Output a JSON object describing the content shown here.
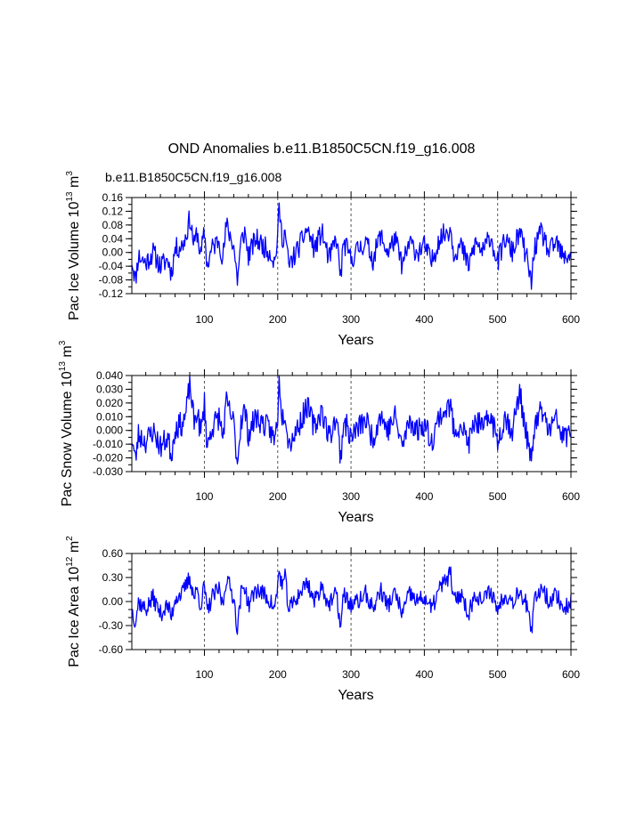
{
  "title": "OND Anomalies b.e11.B1850C5CN.f19_g16.008",
  "case_label": "b.e11.B1850C5CN.f19_g16.008",
  "colors": {
    "series": "#0000ff",
    "text": "#000000",
    "grid": "#555555"
  },
  "chart_data": [
    {
      "type": "line",
      "ylabel_pre": "Pac Ice Volume 10",
      "ylabel_exp": "13",
      "ylabel_unit": " m",
      "ylabel_unit_exp": "3",
      "xlabel": "Years",
      "xlim": [
        1,
        600
      ],
      "xticks": [
        100,
        200,
        300,
        400,
        500,
        600
      ],
      "ylim": [
        -0.12,
        0.16
      ],
      "yticks": [
        "0.16",
        "0.12",
        "0.08",
        "0.04",
        "0.00",
        "-0.04",
        "-0.08",
        "-0.12"
      ],
      "ytick_values": [
        0.16,
        0.12,
        0.08,
        0.04,
        0.0,
        -0.04,
        -0.08,
        -0.12
      ],
      "yminor": 0.02,
      "series_name": "b.e11.B1850C5CN.f19_g16.008",
      "anchors": [
        [
          1,
          -0.02
        ],
        [
          6,
          -0.08
        ],
        [
          10,
          -0.01
        ],
        [
          20,
          -0.03
        ],
        [
          30,
          0.0
        ],
        [
          40,
          -0.04
        ],
        [
          50,
          -0.02
        ],
        [
          55,
          -0.06
        ],
        [
          60,
          0.01
        ],
        [
          70,
          0.02
        ],
        [
          75,
          0.05
        ],
        [
          80,
          0.1
        ],
        [
          86,
          0.02
        ],
        [
          90,
          0.06
        ],
        [
          95,
          -0.01
        ],
        [
          100,
          0.06
        ],
        [
          104,
          -0.04
        ],
        [
          110,
          0.01
        ],
        [
          120,
          0.04
        ],
        [
          125,
          -0.02
        ],
        [
          130,
          0.08
        ],
        [
          140,
          0.02
        ],
        [
          145,
          -0.08
        ],
        [
          150,
          0.03
        ],
        [
          155,
          0.06
        ],
        [
          160,
          -0.01
        ],
        [
          170,
          0.04
        ],
        [
          180,
          0.02
        ],
        [
          190,
          0.0
        ],
        [
          196,
          -0.03
        ],
        [
          200,
          0.05
        ],
        [
          202,
          0.13
        ],
        [
          206,
          0.04
        ],
        [
          210,
          0.06
        ],
        [
          215,
          -0.04
        ],
        [
          230,
          0.02
        ],
        [
          240,
          0.07
        ],
        [
          250,
          0.01
        ],
        [
          260,
          0.06
        ],
        [
          270,
          -0.02
        ],
        [
          280,
          0.04
        ],
        [
          286,
          -0.07
        ],
        [
          290,
          0.03
        ],
        [
          300,
          -0.02
        ],
        [
          310,
          0.01
        ],
        [
          320,
          0.03
        ],
        [
          330,
          -0.02
        ],
        [
          340,
          0.05
        ],
        [
          350,
          0.0
        ],
        [
          360,
          0.04
        ],
        [
          370,
          -0.04
        ],
        [
          380,
          0.03
        ],
        [
          390,
          0.0
        ],
        [
          400,
          0.02
        ],
        [
          410,
          -0.03
        ],
        [
          420,
          0.04
        ],
        [
          436,
          0.07
        ],
        [
          440,
          0.0
        ],
        [
          450,
          0.02
        ],
        [
          460,
          -0.04
        ],
        [
          470,
          0.03
        ],
        [
          480,
          0.0
        ],
        [
          490,
          0.05
        ],
        [
          500,
          -0.03
        ],
        [
          510,
          0.04
        ],
        [
          520,
          0.0
        ],
        [
          530,
          0.06
        ],
        [
          540,
          -0.02
        ],
        [
          546,
          -0.09
        ],
        [
          550,
          0.01
        ],
        [
          560,
          0.06
        ],
        [
          570,
          0.0
        ],
        [
          580,
          0.03
        ],
        [
          590,
          -0.02
        ],
        [
          600,
          0.0
        ]
      ],
      "noise": 0.032,
      "seed": 11
    },
    {
      "type": "line",
      "ylabel_pre": "Pac Snow Volume 10",
      "ylabel_exp": "13",
      "ylabel_unit": " m",
      "ylabel_unit_exp": "3",
      "xlabel": "Years",
      "xlim": [
        1,
        600
      ],
      "xticks": [
        100,
        200,
        300,
        400,
        500,
        600
      ],
      "ylim": [
        -0.03,
        0.04
      ],
      "yticks": [
        "0.040",
        "0.030",
        "0.020",
        "0.010",
        "0.000",
        "-0.010",
        "-0.020",
        "-0.030"
      ],
      "ytick_values": [
        0.04,
        0.03,
        0.02,
        0.01,
        0.0,
        -0.01,
        -0.02,
        -0.03
      ],
      "yminor": 0.005,
      "series_name": "b.e11.B1850C5CN.f19_g16.008",
      "anchors": [
        [
          1,
          -0.005
        ],
        [
          6,
          -0.022
        ],
        [
          10,
          -0.003
        ],
        [
          20,
          -0.008
        ],
        [
          30,
          0.0
        ],
        [
          40,
          -0.012
        ],
        [
          50,
          -0.005
        ],
        [
          55,
          -0.018
        ],
        [
          60,
          0.002
        ],
        [
          70,
          0.005
        ],
        [
          75,
          0.012
        ],
        [
          80,
          0.035
        ],
        [
          86,
          0.005
        ],
        [
          90,
          0.015
        ],
        [
          95,
          -0.003
        ],
        [
          100,
          0.02
        ],
        [
          104,
          -0.012
        ],
        [
          110,
          0.002
        ],
        [
          120,
          0.01
        ],
        [
          125,
          -0.005
        ],
        [
          130,
          0.02
        ],
        [
          140,
          0.005
        ],
        [
          145,
          -0.024
        ],
        [
          150,
          0.008
        ],
        [
          155,
          0.015
        ],
        [
          160,
          -0.003
        ],
        [
          170,
          0.01
        ],
        [
          180,
          0.005
        ],
        [
          190,
          0.0
        ],
        [
          196,
          -0.008
        ],
        [
          200,
          0.012
        ],
        [
          202,
          0.04
        ],
        [
          206,
          0.01
        ],
        [
          210,
          0.015
        ],
        [
          215,
          -0.01
        ],
        [
          230,
          0.005
        ],
        [
          240,
          0.018
        ],
        [
          250,
          0.002
        ],
        [
          260,
          0.015
        ],
        [
          270,
          -0.005
        ],
        [
          280,
          0.01
        ],
        [
          286,
          -0.02
        ],
        [
          290,
          0.008
        ],
        [
          300,
          -0.005
        ],
        [
          310,
          0.002
        ],
        [
          320,
          0.008
        ],
        [
          330,
          -0.006
        ],
        [
          340,
          0.012
        ],
        [
          350,
          0.0
        ],
        [
          360,
          0.01
        ],
        [
          370,
          -0.012
        ],
        [
          380,
          0.008
        ],
        [
          390,
          0.0
        ],
        [
          400,
          0.005
        ],
        [
          410,
          -0.008
        ],
        [
          420,
          0.01
        ],
        [
          436,
          0.018
        ],
        [
          440,
          0.0
        ],
        [
          450,
          0.005
        ],
        [
          460,
          -0.01
        ],
        [
          470,
          0.008
        ],
        [
          480,
          0.0
        ],
        [
          490,
          0.012
        ],
        [
          500,
          -0.008
        ],
        [
          510,
          0.01
        ],
        [
          520,
          0.0
        ],
        [
          530,
          0.028
        ],
        [
          540,
          -0.005
        ],
        [
          546,
          -0.025
        ],
        [
          550,
          0.002
        ],
        [
          560,
          0.015
        ],
        [
          570,
          0.0
        ],
        [
          580,
          0.008
        ],
        [
          590,
          -0.006
        ],
        [
          600,
          0.0
        ]
      ],
      "noise": 0.009,
      "seed": 23
    },
    {
      "type": "line",
      "ylabel_pre": "Pac Ice Area 10",
      "ylabel_exp": "12",
      "ylabel_unit": " m",
      "ylabel_unit_exp": "2",
      "xlabel": "Years",
      "xlim": [
        1,
        600
      ],
      "xticks": [
        100,
        200,
        300,
        400,
        500,
        600
      ],
      "ylim": [
        -0.6,
        0.6
      ],
      "yticks": [
        "0.60",
        "0.30",
        "0.00",
        "-0.30",
        "-0.60"
      ],
      "ytick_values": [
        0.6,
        0.3,
        0.0,
        -0.3,
        -0.6
      ],
      "yminor": 0.1,
      "series_name": "b.e11.B1850C5CN.f19_g16.008",
      "anchors": [
        [
          1,
          -0.1
        ],
        [
          6,
          -0.25
        ],
        [
          10,
          0.0
        ],
        [
          20,
          -0.1
        ],
        [
          30,
          0.05
        ],
        [
          40,
          -0.15
        ],
        [
          50,
          -0.05
        ],
        [
          55,
          -0.2
        ],
        [
          60,
          0.05
        ],
        [
          70,
          0.1
        ],
        [
          75,
          0.2
        ],
        [
          80,
          0.3
        ],
        [
          86,
          0.05
        ],
        [
          90,
          0.15
        ],
        [
          95,
          -0.05
        ],
        [
          100,
          0.2
        ],
        [
          104,
          -0.15
        ],
        [
          110,
          0.05
        ],
        [
          120,
          0.15
        ],
        [
          125,
          -0.05
        ],
        [
          130,
          0.3
        ],
        [
          140,
          0.05
        ],
        [
          145,
          -0.35
        ],
        [
          150,
          0.1
        ],
        [
          155,
          0.2
        ],
        [
          160,
          -0.05
        ],
        [
          170,
          0.15
        ],
        [
          180,
          0.1
        ],
        [
          190,
          0.0
        ],
        [
          196,
          -0.1
        ],
        [
          200,
          0.2
        ],
        [
          202,
          0.38
        ],
        [
          206,
          0.2
        ],
        [
          210,
          0.3
        ],
        [
          215,
          -0.1
        ],
        [
          230,
          0.1
        ],
        [
          240,
          0.25
        ],
        [
          250,
          0.0
        ],
        [
          260,
          0.2
        ],
        [
          270,
          -0.05
        ],
        [
          280,
          0.1
        ],
        [
          286,
          -0.33
        ],
        [
          290,
          0.1
        ],
        [
          300,
          -0.05
        ],
        [
          310,
          0.0
        ],
        [
          320,
          0.1
        ],
        [
          330,
          -0.1
        ],
        [
          340,
          0.15
        ],
        [
          350,
          -0.05
        ],
        [
          360,
          0.1
        ],
        [
          370,
          -0.15
        ],
        [
          380,
          0.1
        ],
        [
          390,
          0.0
        ],
        [
          400,
          0.05
        ],
        [
          410,
          -0.1
        ],
        [
          420,
          0.15
        ],
        [
          436,
          0.35
        ],
        [
          440,
          0.0
        ],
        [
          450,
          0.1
        ],
        [
          460,
          -0.15
        ],
        [
          470,
          0.1
        ],
        [
          480,
          0.0
        ],
        [
          490,
          0.15
        ],
        [
          500,
          -0.1
        ],
        [
          510,
          0.1
        ],
        [
          520,
          0.0
        ],
        [
          530,
          0.15
        ],
        [
          540,
          -0.05
        ],
        [
          546,
          -0.42
        ],
        [
          550,
          0.0
        ],
        [
          560,
          0.2
        ],
        [
          570,
          0.0
        ],
        [
          580,
          0.1
        ],
        [
          590,
          -0.1
        ],
        [
          600,
          0.0
        ]
      ],
      "noise": 0.11,
      "seed": 37
    }
  ]
}
